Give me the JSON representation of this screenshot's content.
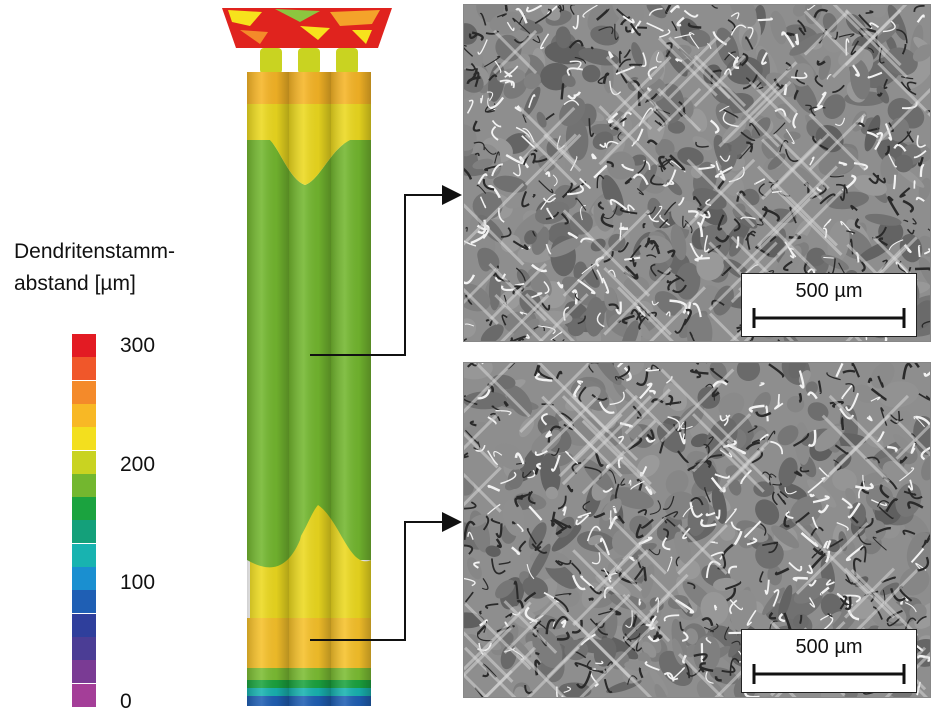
{
  "legend": {
    "title": "Dendritenstamm-\nabstand [µm]",
    "ticks": [
      {
        "value": 300,
        "label": "300"
      },
      {
        "value": 200,
        "label": "200"
      },
      {
        "value": 100,
        "label": "100"
      },
      {
        "value": 0,
        "label": "0"
      }
    ],
    "colors": [
      "#e31b23",
      "#f0572a",
      "#f48a2a",
      "#f8b825",
      "#f3df1e",
      "#c9d321",
      "#73b72f",
      "#1ba33f",
      "#14a07a",
      "#18b3b0",
      "#1a8fd0",
      "#1f5fb4",
      "#2f3f9c",
      "#4b3d95",
      "#7a3b94",
      "#a43e98"
    ]
  },
  "micrographs": {
    "top": {
      "scale_label": "500 µm"
    },
    "bottom": {
      "scale_label": "500 µm"
    }
  }
}
